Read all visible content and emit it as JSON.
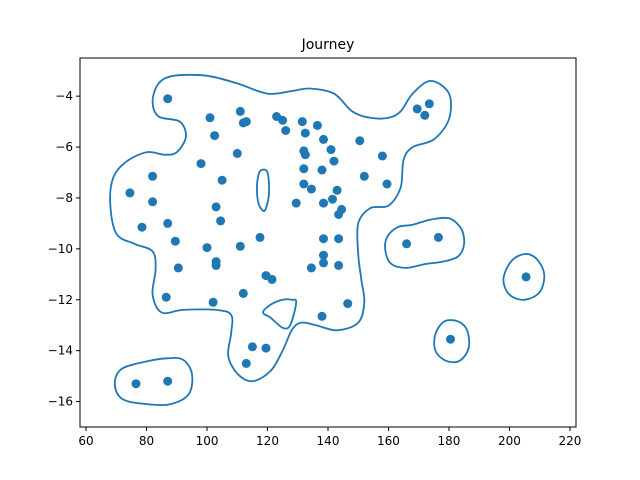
{
  "chart_data": {
    "type": "scatter",
    "title": "Journey",
    "xlabel": "",
    "ylabel": "",
    "xlim": [
      58,
      222
    ],
    "ylim": [
      -17,
      -2.5
    ],
    "x_ticks": [
      60,
      80,
      100,
      120,
      140,
      160,
      180,
      200,
      220
    ],
    "y_ticks": [
      -16,
      -14,
      -12,
      -10,
      -8,
      -6,
      -4
    ],
    "grid": false,
    "legend": "none",
    "point_color": "#1f77b4",
    "contour_color": "#1f77b4",
    "points": [
      {
        "x": 87,
        "y": -4.1
      },
      {
        "x": 101,
        "y": -4.85
      },
      {
        "x": 111,
        "y": -4.6
      },
      {
        "x": 112,
        "y": -5.05
      },
      {
        "x": 113,
        "y": -5.0
      },
      {
        "x": 102.5,
        "y": -5.55
      },
      {
        "x": 123,
        "y": -4.8
      },
      {
        "x": 125,
        "y": -4.95
      },
      {
        "x": 126,
        "y": -5.35
      },
      {
        "x": 131.5,
        "y": -5.0
      },
      {
        "x": 132.5,
        "y": -5.45
      },
      {
        "x": 136.5,
        "y": -5.15
      },
      {
        "x": 138.5,
        "y": -5.7
      },
      {
        "x": 141,
        "y": -6.1
      },
      {
        "x": 132,
        "y": -6.15
      },
      {
        "x": 132.5,
        "y": -6.3
      },
      {
        "x": 142,
        "y": -6.55
      },
      {
        "x": 150.5,
        "y": -5.75
      },
      {
        "x": 158,
        "y": -6.35
      },
      {
        "x": 152,
        "y": -7.15
      },
      {
        "x": 159.5,
        "y": -7.45
      },
      {
        "x": 169.5,
        "y": -4.5
      },
      {
        "x": 172,
        "y": -4.75
      },
      {
        "x": 173.5,
        "y": -4.3
      },
      {
        "x": 98,
        "y": -6.65
      },
      {
        "x": 110,
        "y": -6.25
      },
      {
        "x": 105,
        "y": -7.3
      },
      {
        "x": 132,
        "y": -6.85
      },
      {
        "x": 138,
        "y": -6.9
      },
      {
        "x": 132,
        "y": -7.45
      },
      {
        "x": 134.5,
        "y": -7.65
      },
      {
        "x": 143,
        "y": -7.7
      },
      {
        "x": 141.5,
        "y": -8.05
      },
      {
        "x": 138.5,
        "y": -8.2
      },
      {
        "x": 129.5,
        "y": -8.2
      },
      {
        "x": 144.5,
        "y": -8.45
      },
      {
        "x": 143.5,
        "y": -8.65
      },
      {
        "x": 74.5,
        "y": -7.8
      },
      {
        "x": 82,
        "y": -7.15
      },
      {
        "x": 82,
        "y": -8.15
      },
      {
        "x": 78.5,
        "y": -9.15
      },
      {
        "x": 87,
        "y": -9.0
      },
      {
        "x": 103,
        "y": -8.35
      },
      {
        "x": 104.5,
        "y": -8.9
      },
      {
        "x": 89.5,
        "y": -9.7
      },
      {
        "x": 100,
        "y": -9.95
      },
      {
        "x": 111,
        "y": -9.9
      },
      {
        "x": 117.5,
        "y": -9.55
      },
      {
        "x": 138.5,
        "y": -9.6
      },
      {
        "x": 143.5,
        "y": -9.6
      },
      {
        "x": 138.5,
        "y": -10.25
      },
      {
        "x": 138.5,
        "y": -10.55
      },
      {
        "x": 134.5,
        "y": -10.75
      },
      {
        "x": 143.5,
        "y": -10.65
      },
      {
        "x": 103,
        "y": -10.5
      },
      {
        "x": 103,
        "y": -10.65
      },
      {
        "x": 90.5,
        "y": -10.75
      },
      {
        "x": 119.5,
        "y": -11.05
      },
      {
        "x": 121.5,
        "y": -11.2
      },
      {
        "x": 112,
        "y": -11.75
      },
      {
        "x": 86.5,
        "y": -11.9
      },
      {
        "x": 102,
        "y": -12.1
      },
      {
        "x": 146.5,
        "y": -12.15
      },
      {
        "x": 138,
        "y": -12.65
      },
      {
        "x": 115,
        "y": -13.85
      },
      {
        "x": 119.5,
        "y": -13.9
      },
      {
        "x": 113,
        "y": -14.5
      },
      {
        "x": 166,
        "y": -9.8
      },
      {
        "x": 176.5,
        "y": -9.55
      },
      {
        "x": 205.5,
        "y": -11.1
      },
      {
        "x": 180.5,
        "y": -13.55
      },
      {
        "x": 76.5,
        "y": -15.3
      },
      {
        "x": 87,
        "y": -15.2
      }
    ]
  }
}
